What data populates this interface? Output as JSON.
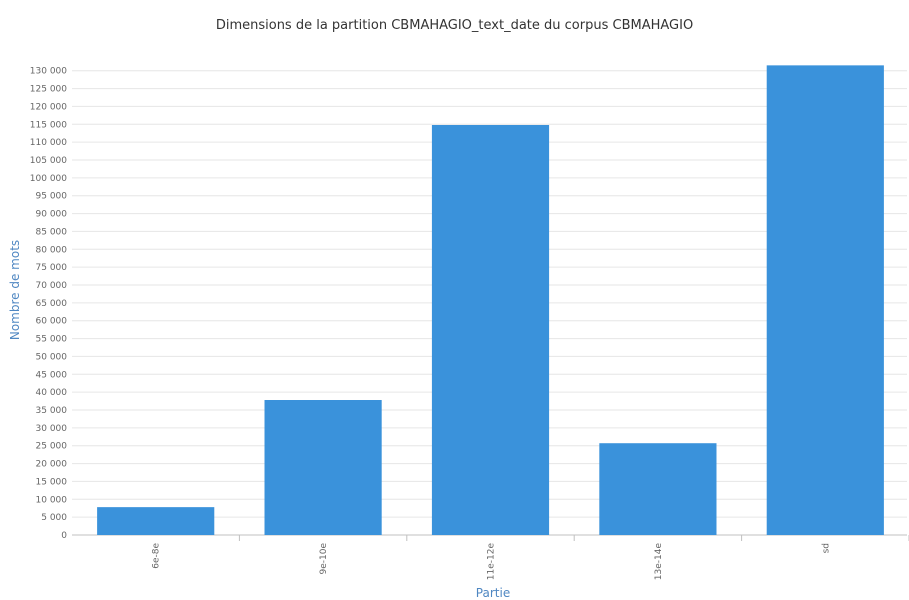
{
  "chart_data": {
    "type": "bar",
    "title": "Dimensions de la partition CBMAHAGIO_text_date du corpus CBMAHAGIO",
    "xlabel": "Partie",
    "ylabel": "Nombre de mots",
    "categories": [
      "6e-8e",
      "9e-10e",
      "11e-12e",
      "13e-14e",
      "sd"
    ],
    "values": [
      7800,
      37800,
      114800,
      25700,
      131500
    ],
    "ylim": [
      0,
      130000
    ],
    "ytick_step": 5000,
    "grid": true,
    "legend": "none",
    "bar_color": "#3a92db"
  }
}
